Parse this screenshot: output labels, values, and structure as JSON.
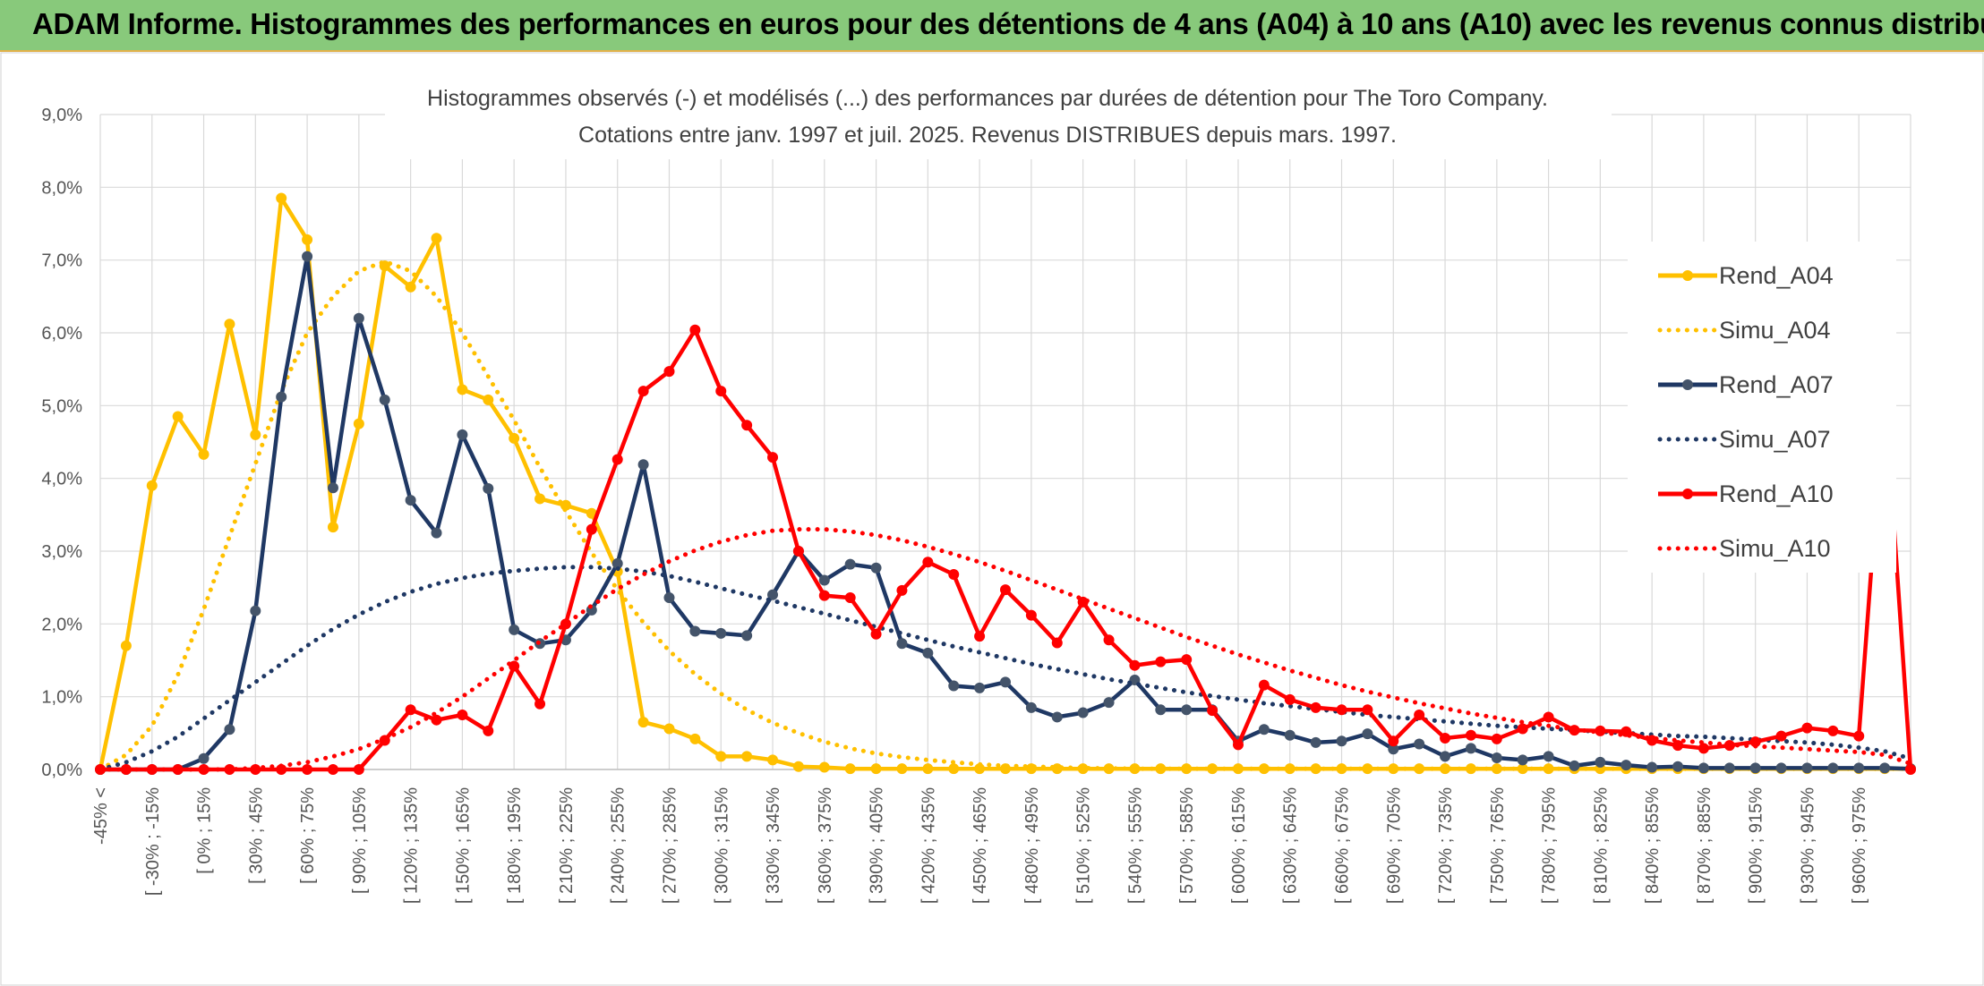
{
  "header": {
    "title": "ADAM Informe. Histogrammes des performances en euros pour des détentions de 4 ans (A04) à 10 ans (A10) avec les revenus connus distribués"
  },
  "chart_data": {
    "type": "line",
    "title": "Histogrammes observés (-) et modélisés (...) des performances par durées de détention pour The Toro Company.",
    "subtitle": "Cotations entre janv. 1997 et juil. 2025. Revenus DISTRIBUES depuis mars. 1997.",
    "xlabel": "",
    "ylabel": "",
    "ylim": [
      0,
      9
    ],
    "yticks": [
      "0,0%",
      "1,0%",
      "2,0%",
      "3,0%",
      "4,0%",
      "5,0%",
      "6,0%",
      "7,0%",
      "8,0%",
      "9,0%"
    ],
    "grid": true,
    "legend_position": "right",
    "x_tick_labels": [
      "-45% <",
      "[ -30% ; -15%",
      "[ 0% ; 15%",
      "[ 30% ; 45%",
      "[ 60% ; 75%",
      "[ 90% ; 105%",
      "[ 120% ; 135%",
      "[ 150% ; 165%",
      "[ 180% ; 195%",
      "[ 210% ; 225%",
      "[ 240% ; 255%",
      "[ 270% ; 285%",
      "[ 300% ; 315%",
      "[ 330% ; 345%",
      "[ 360% ; 375%",
      "[ 390% ; 405%",
      "[ 420% ; 435%",
      "[ 450% ; 465%",
      "[ 480% ; 495%",
      "[ 510% ; 525%",
      "[ 540% ; 555%",
      "[ 570% ; 585%",
      "[ 600% ; 615%",
      "[ 630% ; 645%",
      "[ 660% ; 675%",
      "[ 690% ; 705%",
      "[ 720% ; 735%",
      "[ 750% ; 765%",
      "[ 780% ; 795%",
      "[ 810% ; 825%",
      "[ 840% ; 855%",
      "[ 870% ; 885%",
      "[ 900% ; 915%",
      "[ 930% ; 945%",
      "[ 960% ; 975%"
    ],
    "series": [
      {
        "name": "Rend_A04",
        "style": "solid",
        "color": "#ffc000",
        "values": [
          0,
          1.7,
          3.9,
          4.85,
          4.33,
          6.12,
          4.6,
          7.85,
          7.28,
          3.33,
          4.75,
          6.92,
          6.63,
          7.3,
          5.22,
          5.08,
          4.55,
          3.72,
          3.63,
          3.52,
          2.72,
          0.65,
          0.56,
          0.42,
          0.18,
          0.18,
          0.13,
          0.04,
          0.03,
          0.01,
          0.01,
          0.01,
          0.01,
          0.01,
          0.01,
          0.01,
          0.01,
          0.01,
          0.01,
          0.01,
          0.01,
          0.01,
          0.01,
          0.01,
          0.01,
          0.01,
          0.01,
          0.01,
          0.01,
          0.01,
          0.01,
          0.01,
          0.01,
          0.01,
          0.01,
          0.01,
          0.01,
          0.01,
          0.01,
          0.01,
          0.01,
          0.01,
          0.01,
          0.01,
          0.01,
          0.01,
          0.01,
          0.01,
          0.01,
          0.01,
          0.01
        ]
      },
      {
        "name": "Simu_A04",
        "style": "dotted",
        "color": "#ffc000",
        "values": [
          0,
          0.2,
          0.6,
          1.3,
          2.2,
          3.2,
          4.2,
          5.2,
          6.0,
          6.5,
          6.85,
          6.98,
          6.85,
          6.5,
          6.0,
          5.4,
          4.8,
          4.15,
          3.55,
          2.98,
          2.47,
          2.02,
          1.63,
          1.31,
          1.04,
          0.82,
          0.64,
          0.5,
          0.38,
          0.29,
          0.22,
          0.17,
          0.13,
          0.1,
          0.07,
          0.05,
          0.04,
          0.03,
          0.02,
          0.015,
          0.01,
          0.01,
          0.01,
          0.01,
          0.01,
          0.01,
          0.01,
          0.01,
          0.01,
          0.01,
          0.01,
          0.01,
          0.01,
          0.01,
          0.01,
          0.01,
          0.01,
          0.01,
          0.01,
          0.01,
          0.01,
          0.01,
          0.01,
          0.01,
          0.01,
          0.01,
          0.01,
          0.01,
          0.01,
          0.01,
          0.01
        ]
      },
      {
        "name": "Rend_A07",
        "style": "solid",
        "color": "#1f3864",
        "values": [
          0,
          0,
          0,
          0,
          0.15,
          0.55,
          2.18,
          5.12,
          7.05,
          3.87,
          6.2,
          5.08,
          3.7,
          3.25,
          4.6,
          3.86,
          1.92,
          1.73,
          1.78,
          2.19,
          2.83,
          4.19,
          2.36,
          1.9,
          1.87,
          1.84,
          2.4,
          3.0,
          2.6,
          2.82,
          2.77,
          1.73,
          1.6,
          1.15,
          1.12,
          1.2,
          0.85,
          0.72,
          0.78,
          0.92,
          1.23,
          0.82,
          0.82,
          0.82,
          0.39,
          0.55,
          0.47,
          0.37,
          0.39,
          0.49,
          0.28,
          0.35,
          0.18,
          0.29,
          0.16,
          0.13,
          0.18,
          0.05,
          0.1,
          0.06,
          0.03,
          0.04,
          0.02,
          0.02,
          0.02,
          0.02,
          0.02,
          0.02,
          0.02,
          0.02,
          0.01
        ]
      },
      {
        "name": "Simu_A07",
        "style": "dotted",
        "color": "#1f3864",
        "values": [
          0,
          0.1,
          0.25,
          0.45,
          0.7,
          0.95,
          1.2,
          1.45,
          1.7,
          1.93,
          2.13,
          2.3,
          2.44,
          2.55,
          2.63,
          2.69,
          2.73,
          2.76,
          2.78,
          2.78,
          2.76,
          2.72,
          2.66,
          2.58,
          2.49,
          2.4,
          2.32,
          2.23,
          2.14,
          2.05,
          1.96,
          1.87,
          1.78,
          1.69,
          1.61,
          1.53,
          1.45,
          1.38,
          1.31,
          1.24,
          1.18,
          1.12,
          1.06,
          1.01,
          0.96,
          0.91,
          0.87,
          0.83,
          0.79,
          0.75,
          0.72,
          0.69,
          0.66,
          0.63,
          0.6,
          0.58,
          0.56,
          0.54,
          0.52,
          0.5,
          0.48,
          0.46,
          0.45,
          0.43,
          0.41,
          0.39,
          0.37,
          0.34,
          0.3,
          0.25,
          0.15
        ]
      },
      {
        "name": "Rend_A10",
        "style": "solid",
        "color": "#ff0000",
        "values": [
          0,
          0,
          0,
          0,
          0,
          0,
          0,
          0,
          0,
          0,
          0,
          0.4,
          0.82,
          0.68,
          0.75,
          0.53,
          1.42,
          0.9,
          2.0,
          3.3,
          4.26,
          5.2,
          5.47,
          6.04,
          5.2,
          4.73,
          4.29,
          3.0,
          2.39,
          2.36,
          1.86,
          2.46,
          2.85,
          2.68,
          1.83,
          2.47,
          2.12,
          1.74,
          2.3,
          1.78,
          1.43,
          1.48,
          1.51,
          0.81,
          0.34,
          1.16,
          0.96,
          0.85,
          0.82,
          0.82,
          0.39,
          0.75,
          0.43,
          0.47,
          0.42,
          0.56,
          0.72,
          0.54,
          0.53,
          0.52,
          0.4,
          0.33,
          0.29,
          0.33,
          0.38,
          0.46,
          0.57,
          0.53,
          0.46,
          5.22,
          0
        ]
      },
      {
        "name": "Simu_A10",
        "style": "dotted",
        "color": "#ff0000",
        "values": [
          0,
          0,
          0,
          0,
          0,
          0,
          0.02,
          0.05,
          0.1,
          0.18,
          0.28,
          0.42,
          0.58,
          0.78,
          1.0,
          1.25,
          1.5,
          1.76,
          2.0,
          2.25,
          2.48,
          2.68,
          2.86,
          3.01,
          3.13,
          3.22,
          3.28,
          3.3,
          3.3,
          3.27,
          3.22,
          3.15,
          3.06,
          2.96,
          2.85,
          2.73,
          2.6,
          2.47,
          2.34,
          2.21,
          2.08,
          1.95,
          1.82,
          1.7,
          1.58,
          1.47,
          1.36,
          1.26,
          1.16,
          1.07,
          0.99,
          0.91,
          0.84,
          0.77,
          0.71,
          0.65,
          0.6,
          0.55,
          0.51,
          0.47,
          0.43,
          0.4,
          0.37,
          0.34,
          0.32,
          0.3,
          0.28,
          0.26,
          0.24,
          0.2,
          0.08
        ]
      }
    ]
  }
}
